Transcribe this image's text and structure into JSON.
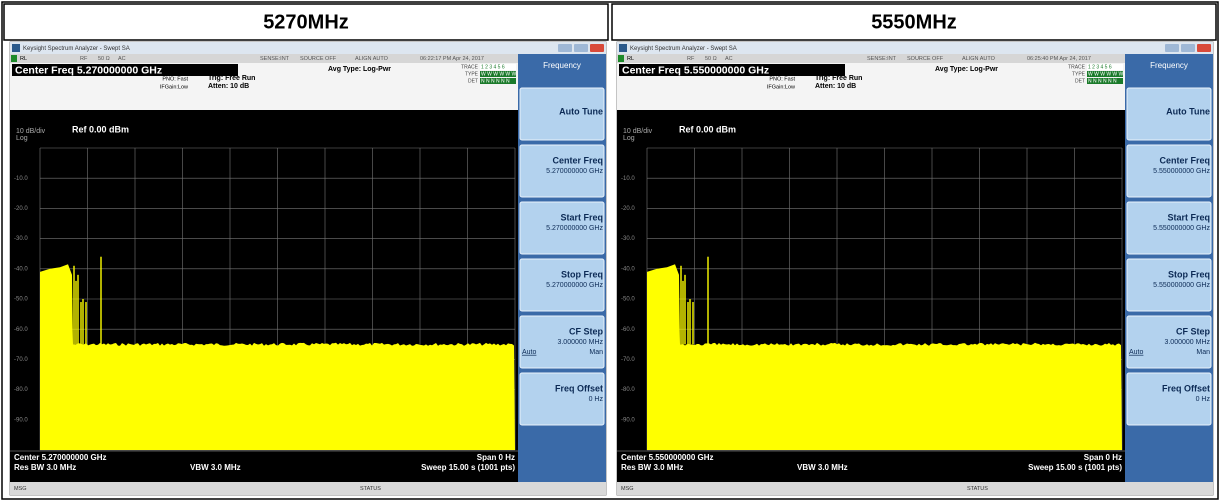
{
  "panels": [
    {
      "title": "5270MHz",
      "window_title": "Keysight Spectrum Analyzer - Swept SA",
      "status_line": [
        "RL",
        "RF",
        "50 Ω",
        "AC",
        "SENSE:INT",
        "SOURCE OFF",
        "ALIGN AUTO",
        "06:22:17 PM Apr 24, 2017"
      ],
      "center_freq": "Center Freq 5.270000000 GHz",
      "settings": [
        "PNO: Fast",
        "IFGain:Low",
        "Trig: Free Run",
        "Atten: 10 dB",
        "Avg Type: Log-Pwr"
      ],
      "trace_labels": [
        "TRACE",
        "TYPE",
        "DET"
      ],
      "trace_values": [
        "1 2 3 4 5 6",
        "W W W W W W",
        "N N N N N N"
      ],
      "scale": "10 dB/div",
      "scale_type": "Log",
      "ref": "Ref 0.00 dBm",
      "y_labels": [
        "-10.0",
        "-20.0",
        "-30.0",
        "-40.0",
        "-50.0",
        "-60.0",
        "-70.0",
        "-80.0",
        "-90.0"
      ],
      "footer": {
        "center": "Center 5.270000000 GHz",
        "span": "Span 0 Hz",
        "rbw": "Res BW 3.0 MHz",
        "vbw": "VBW 3.0 MHz",
        "sweep": "Sweep  15.00 s (1001 pts)"
      },
      "menu": {
        "title": "Frequency",
        "keys": [
          {
            "label": "Auto Tune"
          },
          {
            "label": "Center Freq",
            "value": "5.270000000 GHz"
          },
          {
            "label": "Start Freq",
            "value": "5.270000000 GHz"
          },
          {
            "label": "Stop Freq",
            "value": "5.270000000 GHz"
          },
          {
            "label": "CF Step",
            "value": "3.000000 MHz",
            "options": [
              "Auto",
              "Man"
            ]
          },
          {
            "label": "Freq Offset",
            "value": "0 Hz"
          }
        ]
      },
      "status_bar": [
        "MSG",
        "STATUS"
      ]
    },
    {
      "title": "5550MHz",
      "window_title": "Keysight Spectrum Analyzer - Swept SA",
      "status_line": [
        "RL",
        "RF",
        "50 Ω",
        "AC",
        "SENSE:INT",
        "SOURCE OFF",
        "ALIGN AUTO",
        "06:25:40 PM Apr 24, 2017"
      ],
      "center_freq": "Center Freq 5.550000000 GHz",
      "settings": [
        "PNO: Fast",
        "IFGain:Low",
        "Trig: Free Run",
        "Atten: 10 dB",
        "Avg Type: Log-Pwr"
      ],
      "trace_labels": [
        "TRACE",
        "TYPE",
        "DET"
      ],
      "trace_values": [
        "1 2 3 4 5 6",
        "W W W W W W",
        "N N N N N N"
      ],
      "scale": "10 dB/div",
      "scale_type": "Log",
      "ref": "Ref 0.00 dBm",
      "y_labels": [
        "-10.0",
        "-20.0",
        "-30.0",
        "-40.0",
        "-50.0",
        "-60.0",
        "-70.0",
        "-80.0",
        "-90.0"
      ],
      "footer": {
        "center": "Center 5.550000000 GHz",
        "span": "Span 0 Hz",
        "rbw": "Res BW 3.0 MHz",
        "vbw": "VBW 3.0 MHz",
        "sweep": "Sweep  15.00 s (1001 pts)"
      },
      "menu": {
        "title": "Frequency",
        "keys": [
          {
            "label": "Auto Tune"
          },
          {
            "label": "Center Freq",
            "value": "5.550000000 GHz"
          },
          {
            "label": "Start Freq",
            "value": "5.550000000 GHz"
          },
          {
            "label": "Stop Freq",
            "value": "5.550000000 GHz"
          },
          {
            "label": "CF Step",
            "value": "3.000000 MHz",
            "options": [
              "Auto",
              "Man"
            ]
          },
          {
            "label": "Freq Offset",
            "value": "0 Hz"
          }
        ]
      },
      "status_bar": [
        "MSG",
        "STATUS"
      ]
    }
  ]
}
